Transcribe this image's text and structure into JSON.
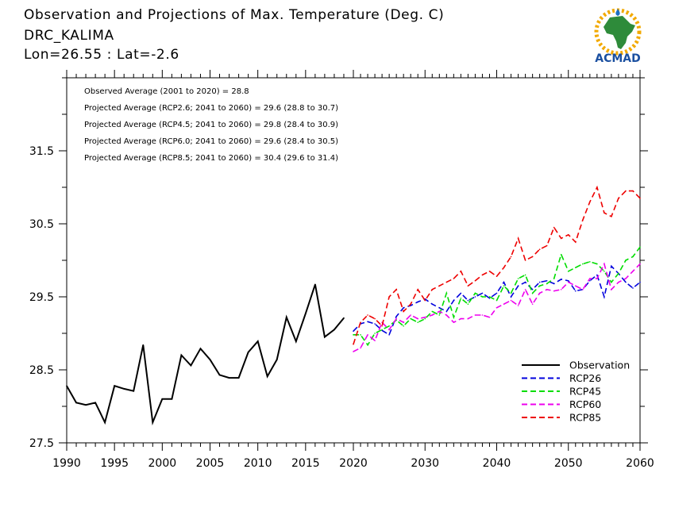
{
  "header": {
    "title": "Observation and Projections of Max. Temperature (Deg. C)",
    "location": "DRC_KALIMA",
    "coords": "Lon=26.55 : Lat=-2.6"
  },
  "logo": {
    "text": "ACMAD",
    "icon": "africa-map-icon"
  },
  "stats": [
    "Observed Average (2001 to 2020) = 28.8",
    "Projected Average (RCP2.6; 2041 to 2060) = 29.6 (28.8 to 30.7)",
    "Projected Average (RCP4.5; 2041 to 2060) = 29.8 (28.4 to 30.9)",
    "Projected Average (RCP6.0; 2041 to 2060) = 29.6 (28.4 to 30.5)",
    "Projected Average (RCP8.5; 2041 to 2060) = 30.4 (29.6 to 31.4)"
  ],
  "chart_data": {
    "type": "line",
    "title": "Observation and Projections of Max. Temperature (Deg. C)",
    "xlim": [
      1990,
      2060
    ],
    "ylim": [
      27.5,
      32.5
    ],
    "x_ticks": [
      1990,
      1995,
      2000,
      2005,
      2010,
      2015,
      2020,
      2030,
      2040,
      2050,
      2060
    ],
    "y_ticks": [
      27.5,
      28.5,
      29.5,
      30.5,
      31.5
    ],
    "grid": false,
    "legend_position": "bottom-right",
    "series": [
      {
        "name": "Observation",
        "color": "#000000",
        "dashed": false,
        "x": [
          1990,
          1991,
          1992,
          1993,
          1994,
          1995,
          1996,
          1997,
          1998,
          1999,
          2000,
          2001,
          2002,
          2003,
          2004,
          2005,
          2006,
          2007,
          2008,
          2009,
          2010,
          2011,
          2012,
          2013,
          2014,
          2015,
          2016,
          2017,
          2018,
          2019
        ],
        "values": [
          28.28,
          28.05,
          28.02,
          28.05,
          27.78,
          28.28,
          28.24,
          28.21,
          28.84,
          27.78,
          28.1,
          28.1,
          28.7,
          28.56,
          28.79,
          28.64,
          28.43,
          28.39,
          28.39,
          28.74,
          28.89,
          28.41,
          28.64,
          29.22,
          28.89,
          29.27,
          29.67,
          28.95,
          29.05,
          29.21
        ]
      },
      {
        "name": "RCP26",
        "color": "#0000dd",
        "dashed": true,
        "x": [
          2020,
          2021,
          2022,
          2023,
          2024,
          2025,
          2026,
          2027,
          2028,
          2029,
          2030,
          2031,
          2032,
          2033,
          2034,
          2035,
          2036,
          2037,
          2038,
          2039,
          2040,
          2041,
          2042,
          2043,
          2044,
          2045,
          2046,
          2047,
          2048,
          2049,
          2050,
          2051,
          2052,
          2053,
          2054,
          2055,
          2056,
          2057,
          2058,
          2059,
          2060
        ],
        "values": [
          29.03,
          29.13,
          29.16,
          29.13,
          29.04,
          28.98,
          29.23,
          29.35,
          29.38,
          29.43,
          29.47,
          29.4,
          29.35,
          29.3,
          29.45,
          29.55,
          29.45,
          29.5,
          29.55,
          29.48,
          29.55,
          29.7,
          29.5,
          29.65,
          29.7,
          29.6,
          29.7,
          29.72,
          29.68,
          29.74,
          29.72,
          29.58,
          29.6,
          29.72,
          29.8,
          29.5,
          29.92,
          29.82,
          29.7,
          29.62,
          29.7
        ]
      },
      {
        "name": "RCP45",
        "color": "#00dd00",
        "dashed": true,
        "x": [
          2020,
          2021,
          2022,
          2023,
          2024,
          2025,
          2026,
          2027,
          2028,
          2029,
          2030,
          2031,
          2032,
          2033,
          2034,
          2035,
          2036,
          2037,
          2038,
          2039,
          2040,
          2041,
          2042,
          2043,
          2044,
          2045,
          2046,
          2047,
          2048,
          2049,
          2050,
          2051,
          2052,
          2053,
          2054,
          2055,
          2056,
          2057,
          2058,
          2059,
          2060
        ],
        "values": [
          28.98,
          28.98,
          28.84,
          29.0,
          29.05,
          29.1,
          29.18,
          29.1,
          29.2,
          29.15,
          29.2,
          29.3,
          29.25,
          29.55,
          29.22,
          29.48,
          29.4,
          29.55,
          29.5,
          29.5,
          29.45,
          29.65,
          29.55,
          29.75,
          29.8,
          29.55,
          29.65,
          29.68,
          29.75,
          30.08,
          29.85,
          29.9,
          29.95,
          29.98,
          29.95,
          29.85,
          29.7,
          29.82,
          30.0,
          30.05,
          30.18
        ]
      },
      {
        "name": "RCP60",
        "color": "#ee00ee",
        "dashed": true,
        "x": [
          2020,
          2021,
          2022,
          2023,
          2024,
          2025,
          2026,
          2027,
          2028,
          2029,
          2030,
          2031,
          2032,
          2033,
          2034,
          2035,
          2036,
          2037,
          2038,
          2039,
          2040,
          2041,
          2042,
          2043,
          2044,
          2045,
          2046,
          2047,
          2048,
          2049,
          2050,
          2051,
          2052,
          2053,
          2054,
          2055,
          2056,
          2057,
          2058,
          2059,
          2060
        ],
        "values": [
          28.75,
          28.8,
          28.98,
          28.9,
          29.15,
          29.05,
          29.2,
          29.15,
          29.25,
          29.2,
          29.22,
          29.25,
          29.3,
          29.25,
          29.15,
          29.2,
          29.2,
          29.25,
          29.25,
          29.22,
          29.35,
          29.4,
          29.45,
          29.38,
          29.6,
          29.4,
          29.55,
          29.6,
          29.58,
          29.6,
          29.7,
          29.65,
          29.6,
          29.75,
          29.75,
          29.95,
          29.6,
          29.7,
          29.75,
          29.85,
          29.95
        ]
      },
      {
        "name": "RCP85",
        "color": "#ee0000",
        "dashed": true,
        "x": [
          2020,
          2021,
          2022,
          2023,
          2024,
          2025,
          2026,
          2027,
          2028,
          2029,
          2030,
          2031,
          2032,
          2033,
          2034,
          2035,
          2036,
          2037,
          2038,
          2039,
          2040,
          2041,
          2042,
          2043,
          2044,
          2045,
          2046,
          2047,
          2048,
          2049,
          2050,
          2051,
          2052,
          2053,
          2054,
          2055,
          2056,
          2057,
          2058,
          2059,
          2060
        ],
        "values": [
          28.85,
          29.15,
          29.25,
          29.2,
          29.1,
          29.5,
          29.6,
          29.3,
          29.4,
          29.6,
          29.45,
          29.6,
          29.65,
          29.7,
          29.75,
          29.85,
          29.65,
          29.72,
          29.8,
          29.85,
          29.78,
          29.9,
          30.05,
          30.3,
          30.0,
          30.05,
          30.15,
          30.2,
          30.45,
          30.3,
          30.35,
          30.25,
          30.55,
          30.8,
          31.0,
          30.65,
          30.6,
          30.85,
          30.95,
          30.95,
          30.85
        ]
      }
    ]
  }
}
